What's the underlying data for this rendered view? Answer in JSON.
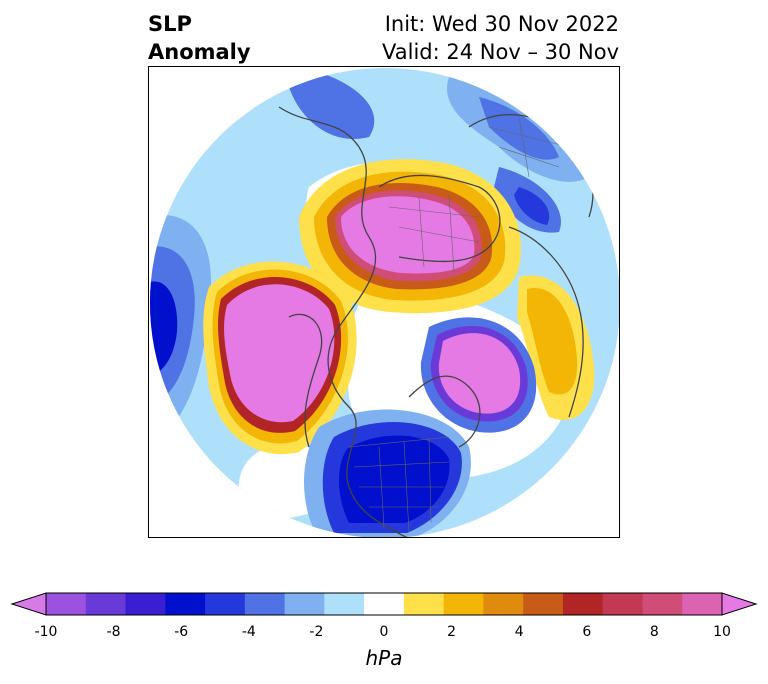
{
  "header": {
    "title_line1": "SLP",
    "title_line2": "Anomaly",
    "init_label": "Init: Wed 30 Nov 2022",
    "valid_label": "Valid: 24 Nov – 30 Nov"
  },
  "colorbar": {
    "unit": "hPa",
    "ticks": [
      "-10",
      "-8",
      "-6",
      "-4",
      "-2",
      "0",
      "2",
      "4",
      "6",
      "8",
      "10"
    ],
    "min": -10,
    "max": 10,
    "colors": [
      "#d77ae8",
      "#9b52e0",
      "#6a3ad9",
      "#3a1fd2",
      "#0010cc",
      "#2438db",
      "#4f72e5",
      "#7fb0f0",
      "#aee0fb",
      "#ffffff",
      "#fde04a",
      "#f3b506",
      "#df8b0d",
      "#c85b18",
      "#b22526",
      "#c23a52",
      "#cf4d76",
      "#db63b2",
      "#e57ae4"
    ]
  },
  "map": {
    "projection": "north-polar-stereographic",
    "anomalies": [
      {
        "region": "arctic-siberia",
        "sign": "positive",
        "peak_hpa": 10
      },
      {
        "region": "alaska-gulf",
        "sign": "positive",
        "peak_hpa": 10
      },
      {
        "region": "greenland-atlantic",
        "sign": "positive",
        "peak_hpa": 10
      },
      {
        "region": "eastern-north-america",
        "sign": "negative",
        "peak_hpa": -7
      },
      {
        "region": "north-pacific",
        "sign": "negative",
        "peak_hpa": -6
      },
      {
        "region": "europe",
        "sign": "negative",
        "peak_hpa": -5
      }
    ]
  }
}
